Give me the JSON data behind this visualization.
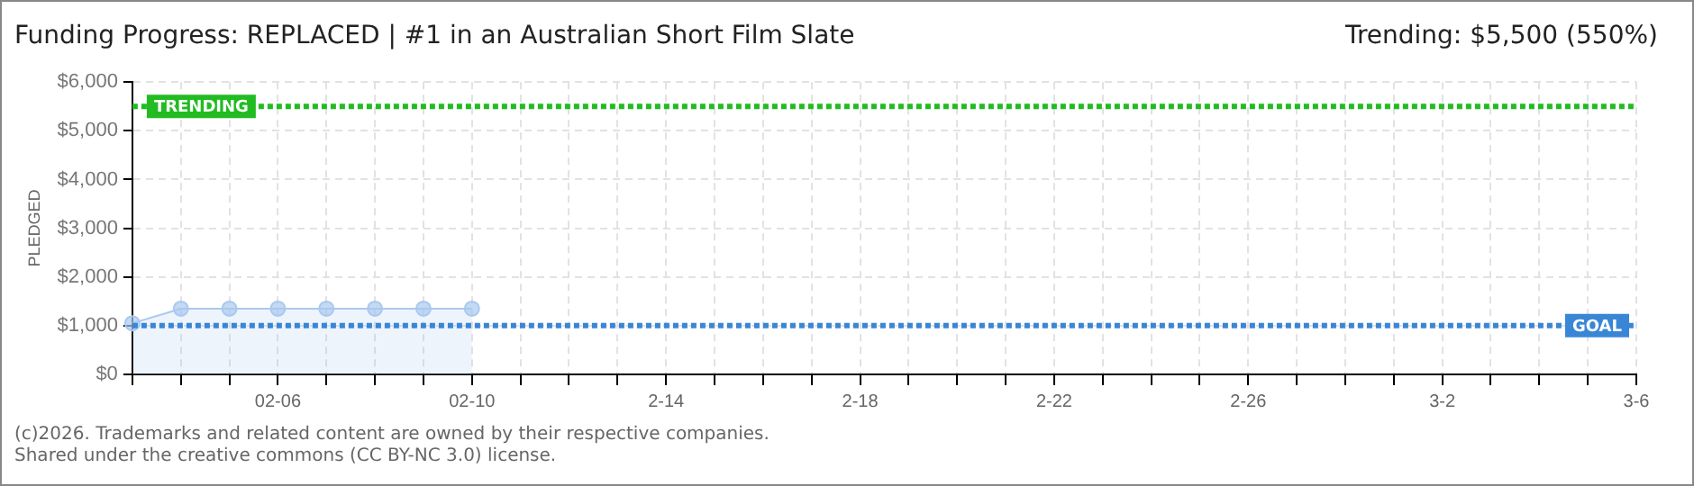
{
  "chart_data": {
    "type": "area",
    "title": "Funding Progress: REPLACED | #1 in an Australian Short Film Slate",
    "subtitle": "Trending: $5,500 (550%)",
    "ylabel": "PLEDGED",
    "categories": [
      null,
      null,
      null,
      "02-06",
      null,
      null,
      null,
      "02-10",
      null,
      null,
      null,
      "2-14",
      null,
      null,
      null,
      "2-18",
      null,
      null,
      null,
      "2-22",
      null,
      null,
      null,
      "2-26",
      null,
      null,
      null,
      "3-2",
      null,
      null,
      null,
      "3-6"
    ],
    "series": [
      {
        "color": "#a9c9ef",
        "values": [
          1050,
          1350,
          1350,
          1350,
          1350,
          1350,
          1350,
          1350,
          null,
          null,
          null,
          null,
          null,
          null,
          null,
          null,
          null,
          null,
          null,
          null,
          null,
          null,
          null,
          null,
          null,
          null,
          null,
          null,
          null,
          null,
          null,
          null
        ]
      }
    ],
    "ylim": [
      0,
      6000
    ],
    "yticks": [
      {
        "value": 0,
        "label": "$0"
      },
      {
        "value": 1000,
        "label": "$1,000"
      },
      {
        "value": 2000,
        "label": "$2,000"
      },
      {
        "value": 3000,
        "label": "$3,000"
      },
      {
        "value": 4000,
        "label": "$4,000"
      },
      {
        "value": 5000,
        "label": "$5,000"
      },
      {
        "value": 6000,
        "label": "$6,000"
      }
    ],
    "ref_lines": [
      {
        "axis": "y",
        "value": 5500,
        "label": "TRENDING",
        "color": "#22bb22",
        "line_style": "dotted"
      },
      {
        "axis": "y",
        "value": 1000,
        "label": "GOAL",
        "color": "#3a86d6",
        "line_style": "dotted"
      }
    ],
    "grid": true,
    "legend": false,
    "marker": "circle",
    "annotations": [
      "(c)2026. Trademarks and related content are owned by their respective companies.",
      "Shared under the creative commons (CC BY-NC 3.0) license."
    ]
  }
}
